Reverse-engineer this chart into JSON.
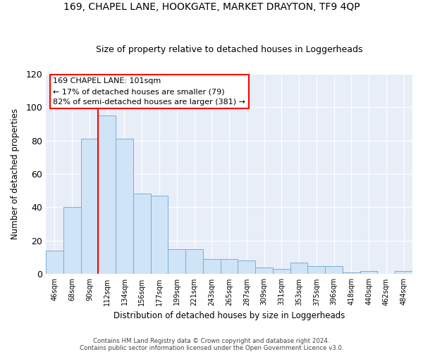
{
  "title_line1": "169, CHAPEL LANE, HOOKGATE, MARKET DRAYTON, TF9 4QP",
  "title_line2": "Size of property relative to detached houses in Loggerheads",
  "xlabel": "Distribution of detached houses by size in Loggerheads",
  "ylabel": "Number of detached properties",
  "categories": [
    "46sqm",
    "68sqm",
    "90sqm",
    "112sqm",
    "134sqm",
    "156sqm",
    "177sqm",
    "199sqm",
    "221sqm",
    "243sqm",
    "265sqm",
    "287sqm",
    "309sqm",
    "331sqm",
    "353sqm",
    "375sqm",
    "396sqm",
    "418sqm",
    "440sqm",
    "462sqm",
    "484sqm"
  ],
  "values": [
    14,
    40,
    81,
    95,
    81,
    48,
    47,
    15,
    15,
    9,
    9,
    8,
    4,
    3,
    7,
    5,
    5,
    1,
    2,
    0,
    2
  ],
  "bar_color": "#d0e4f7",
  "bar_edge_color": "#7aadd4",
  "red_line_x": 2.5,
  "red_line_color": "red",
  "annotation_text_line1": "169 CHAPEL LANE: 101sqm",
  "annotation_text_line2": "← 17% of detached houses are smaller (79)",
  "annotation_text_line3": "82% of semi-detached houses are larger (381) →",
  "annotation_box_color": "white",
  "annotation_box_edge_color": "red",
  "ylim": [
    0,
    120
  ],
  "yticks": [
    0,
    20,
    40,
    60,
    80,
    100,
    120
  ],
  "background_color": "#e8eef8",
  "grid_color": "white",
  "footnote_line1": "Contains HM Land Registry data © Crown copyright and database right 2024.",
  "footnote_line2": "Contains public sector information licensed under the Open Government Licence v3.0."
}
